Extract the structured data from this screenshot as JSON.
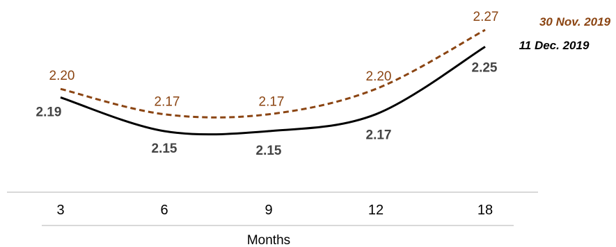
{
  "chart_data": {
    "type": "line",
    "x": [
      3,
      6,
      9,
      12,
      18
    ],
    "xlabel": "Months",
    "series": [
      {
        "name": "30 Nov. 2019",
        "values": [
          2.2,
          2.17,
          2.17,
          2.2,
          2.27
        ],
        "labels": [
          "2.20",
          "2.17",
          "2.17",
          "2.20",
          "2.27"
        ],
        "color": "#8B4513",
        "style": "dashed",
        "label_weight": "normal"
      },
      {
        "name": "11 Dec. 2019",
        "values": [
          2.19,
          2.15,
          2.15,
          2.17,
          2.25
        ],
        "labels": [
          "2.19",
          "2.15",
          "2.15",
          "2.17",
          "2.25"
        ],
        "color": "#000000",
        "style": "solid",
        "label_weight": "bold",
        "label_color": "#444444"
      }
    ],
    "legend_placement": "top-right, at line ends",
    "grid": false
  }
}
